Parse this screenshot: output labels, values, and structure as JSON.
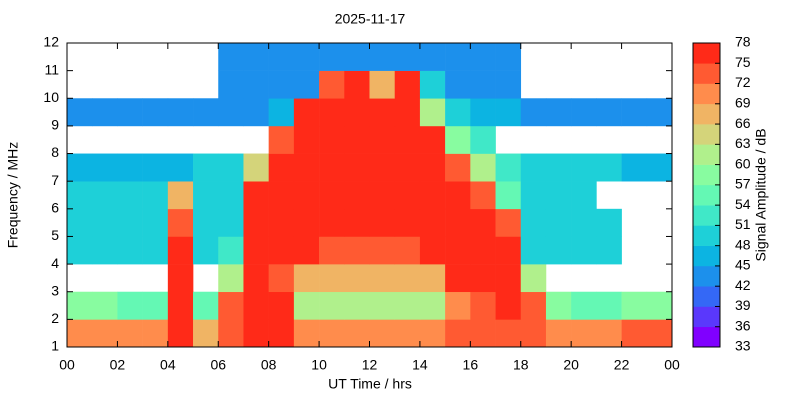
{
  "chart_data": {
    "type": "heatmap",
    "title": "2025-11-17",
    "xlabel": "UT Time / hrs",
    "ylabel": "Frequency / MHz",
    "zlabel": "Signal Amplitude / dB",
    "xlim": [
      0,
      24
    ],
    "ylim": [
      1,
      12
    ],
    "zlim": [
      33,
      78
    ],
    "xticks": [
      {
        "value": 0,
        "label": "00"
      },
      {
        "value": 2,
        "label": "02"
      },
      {
        "value": 4,
        "label": "04"
      },
      {
        "value": 6,
        "label": "06"
      },
      {
        "value": 8,
        "label": "08"
      },
      10,
      12,
      14,
      16,
      18,
      20,
      22,
      {
        "value": 24,
        "label": "00"
      }
    ],
    "yticks": [
      1,
      2,
      3,
      4,
      5,
      6,
      7,
      8,
      9,
      10,
      11,
      12
    ],
    "zticks": [
      33,
      36,
      39,
      42,
      45,
      48,
      51,
      54,
      57,
      60,
      63,
      66,
      69,
      72,
      75,
      78
    ],
    "colors": [
      "#8000ff",
      "#5a38fc",
      "#3468f6",
      "#1c90ec",
      "#0cb4e2",
      "#1ed0d8",
      "#40e8c8",
      "#64f8b4",
      "#88fca0",
      "#b0f08c",
      "#d4d47a",
      "#f0b464",
      "#ff8c4c",
      "#ff5a32",
      "#ff2a18"
    ],
    "x": [
      0,
      1,
      2,
      3,
      4,
      5,
      6,
      7,
      8,
      9,
      10,
      11,
      12,
      13,
      14,
      15,
      16,
      17,
      18,
      19,
      20,
      21,
      22,
      23,
      24
    ],
    "y": [
      1,
      2,
      3,
      4,
      5,
      6,
      7,
      8,
      9,
      10,
      11,
      12
    ],
    "z": [
      [
        70,
        70,
        70,
        69,
        75,
        66,
        72,
        78,
        75,
        69,
        69,
        69,
        69,
        69,
        69,
        72,
        72,
        72,
        72,
        69,
        69,
        69,
        72,
        72
      ],
      [
        57,
        57,
        54,
        54,
        75,
        54,
        72,
        78,
        78,
        60,
        60,
        60,
        60,
        60,
        60,
        69,
        72,
        78,
        72,
        57,
        54,
        54,
        57,
        57
      ],
      [
        null,
        null,
        null,
        null,
        75,
        null,
        60,
        78,
        72,
        66,
        66,
        66,
        66,
        66,
        66,
        75,
        78,
        78,
        60,
        null,
        null,
        null,
        null,
        null
      ],
      [
        48,
        48,
        48,
        48,
        75,
        48,
        51,
        78,
        78,
        75,
        72,
        72,
        72,
        72,
        75,
        78,
        78,
        78,
        48,
        48,
        48,
        48,
        null,
        null
      ],
      [
        48,
        48,
        48,
        48,
        72,
        48,
        48,
        78,
        78,
        78,
        78,
        78,
        78,
        78,
        78,
        78,
        78,
        72,
        48,
        48,
        48,
        48,
        null,
        null
      ],
      [
        48,
        48,
        48,
        48,
        66,
        48,
        48,
        75,
        78,
        78,
        78,
        78,
        78,
        78,
        78,
        75,
        72,
        54,
        48,
        48,
        48,
        null,
        null,
        null
      ],
      [
        45,
        45,
        45,
        45,
        45,
        48,
        48,
        63,
        78,
        78,
        78,
        78,
        78,
        78,
        78,
        72,
        60,
        51,
        48,
        48,
        48,
        48,
        45,
        45
      ],
      [
        null,
        null,
        null,
        null,
        null,
        null,
        null,
        null,
        72,
        78,
        78,
        78,
        78,
        78,
        78,
        57,
        51,
        null,
        null,
        null,
        null,
        null,
        null,
        null
      ],
      [
        42,
        42,
        42,
        42,
        42,
        42,
        42,
        42,
        45,
        78,
        78,
        78,
        78,
        78,
        60,
        48,
        45,
        45,
        42,
        42,
        42,
        42,
        42,
        42
      ],
      [
        null,
        null,
        null,
        null,
        null,
        null,
        42,
        42,
        42,
        42,
        72,
        75,
        66,
        78,
        48,
        42,
        42,
        42,
        null,
        null,
        null,
        null,
        null,
        null
      ],
      [
        null,
        null,
        null,
        null,
        null,
        null,
        42,
        42,
        42,
        42,
        42,
        42,
        42,
        42,
        42,
        42,
        42,
        42,
        null,
        null,
        null,
        null,
        null,
        null
      ]
    ]
  }
}
